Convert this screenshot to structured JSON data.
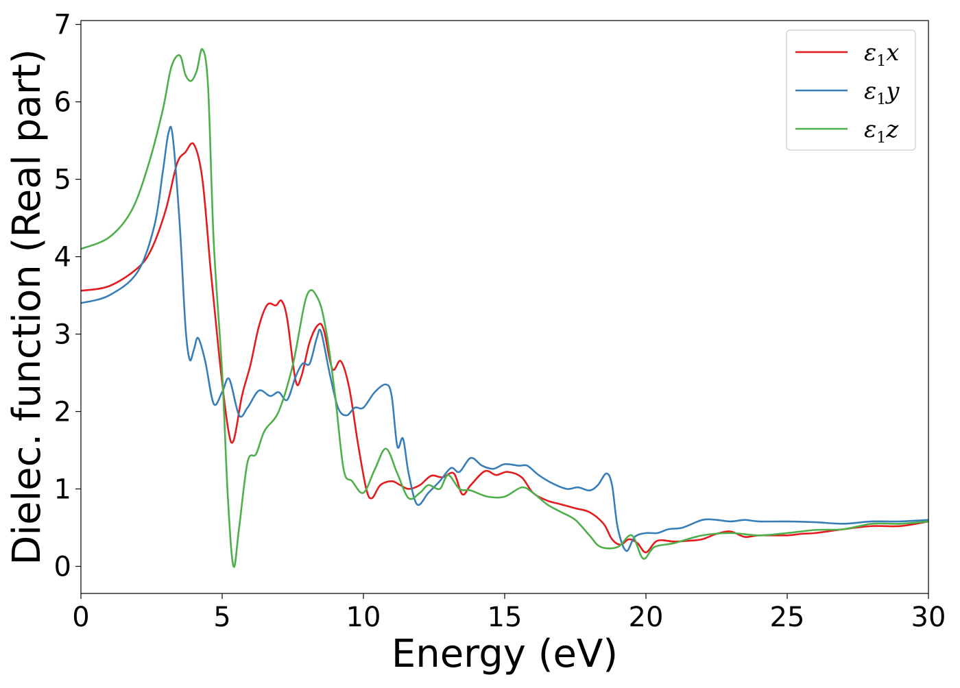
{
  "chart_data": {
    "type": "line",
    "xlabel": "Energy (eV)",
    "ylabel": "Dielec. function (Real part)",
    "xlim": [
      0,
      30
    ],
    "ylim": [
      -0.35,
      7.05
    ],
    "x_ticks": [
      0,
      5,
      10,
      15,
      20,
      25,
      30
    ],
    "y_ticks": [
      0,
      1,
      2,
      3,
      4,
      5,
      6,
      7
    ],
    "grid": false,
    "legend_position": "top-right",
    "series": [
      {
        "name": "ε₁x",
        "legend": {
          "symbol": "ε",
          "sub": "1",
          "var": "x"
        },
        "color": "#e41a1c",
        "points": [
          [
            0,
            3.56
          ],
          [
            1,
            3.62
          ],
          [
            2,
            3.85
          ],
          [
            2.5,
            4.1
          ],
          [
            3,
            4.6
          ],
          [
            3.4,
            5.2
          ],
          [
            3.7,
            5.35
          ],
          [
            4,
            5.45
          ],
          [
            4.3,
            5.0
          ],
          [
            4.6,
            3.8
          ],
          [
            4.9,
            2.7
          ],
          [
            5.2,
            1.8
          ],
          [
            5.4,
            1.62
          ],
          [
            5.7,
            2.2
          ],
          [
            6.0,
            2.6
          ],
          [
            6.3,
            3.1
          ],
          [
            6.6,
            3.38
          ],
          [
            6.9,
            3.37
          ],
          [
            7.1,
            3.43
          ],
          [
            7.3,
            3.2
          ],
          [
            7.6,
            2.4
          ],
          [
            7.8,
            2.45
          ],
          [
            8.1,
            2.9
          ],
          [
            8.4,
            3.12
          ],
          [
            8.6,
            3.05
          ],
          [
            8.9,
            2.55
          ],
          [
            9.2,
            2.65
          ],
          [
            9.5,
            2.3
          ],
          [
            9.8,
            1.6
          ],
          [
            10.1,
            1.0
          ],
          [
            10.3,
            0.88
          ],
          [
            10.6,
            1.05
          ],
          [
            11.0,
            1.1
          ],
          [
            11.3,
            1.05
          ],
          [
            11.6,
            1.0
          ],
          [
            12.0,
            1.05
          ],
          [
            12.4,
            1.17
          ],
          [
            12.8,
            1.15
          ],
          [
            13.2,
            1.2
          ],
          [
            13.5,
            0.93
          ],
          [
            13.8,
            1.05
          ],
          [
            14.3,
            1.23
          ],
          [
            14.7,
            1.18
          ],
          [
            15.1,
            1.22
          ],
          [
            15.6,
            1.15
          ],
          [
            16.0,
            0.95
          ],
          [
            16.5,
            0.85
          ],
          [
            17.0,
            0.8
          ],
          [
            17.5,
            0.75
          ],
          [
            18.0,
            0.7
          ],
          [
            18.5,
            0.55
          ],
          [
            18.8,
            0.35
          ],
          [
            19.1,
            0.28
          ],
          [
            19.4,
            0.35
          ],
          [
            19.7,
            0.3
          ],
          [
            20.0,
            0.18
          ],
          [
            20.4,
            0.33
          ],
          [
            21.0,
            0.32
          ],
          [
            21.5,
            0.33
          ],
          [
            22.0,
            0.35
          ],
          [
            22.5,
            0.42
          ],
          [
            23.0,
            0.45
          ],
          [
            23.5,
            0.38
          ],
          [
            24.0,
            0.4
          ],
          [
            25.0,
            0.4
          ],
          [
            25.5,
            0.42
          ],
          [
            26.0,
            0.43
          ],
          [
            27.0,
            0.48
          ],
          [
            28.0,
            0.52
          ],
          [
            29.0,
            0.52
          ],
          [
            30.0,
            0.58
          ]
        ]
      },
      {
        "name": "ε₁y",
        "legend": {
          "symbol": "ε",
          "sub": "1",
          "var": "y"
        },
        "color": "#377eb8",
        "points": [
          [
            0,
            3.4
          ],
          [
            1,
            3.5
          ],
          [
            2,
            3.8
          ],
          [
            2.6,
            4.4
          ],
          [
            2.9,
            5.1
          ],
          [
            3.1,
            5.6
          ],
          [
            3.25,
            5.55
          ],
          [
            3.5,
            4.4
          ],
          [
            3.7,
            3.1
          ],
          [
            3.85,
            2.67
          ],
          [
            4.0,
            2.8
          ],
          [
            4.15,
            2.95
          ],
          [
            4.4,
            2.65
          ],
          [
            4.7,
            2.1
          ],
          [
            5.0,
            2.25
          ],
          [
            5.25,
            2.42
          ],
          [
            5.6,
            1.95
          ],
          [
            5.9,
            2.05
          ],
          [
            6.3,
            2.27
          ],
          [
            6.7,
            2.2
          ],
          [
            7.0,
            2.25
          ],
          [
            7.3,
            2.15
          ],
          [
            7.6,
            2.45
          ],
          [
            7.85,
            2.62
          ],
          [
            8.1,
            2.62
          ],
          [
            8.35,
            2.95
          ],
          [
            8.5,
            3.03
          ],
          [
            8.8,
            2.5
          ],
          [
            9.1,
            2.05
          ],
          [
            9.4,
            1.95
          ],
          [
            9.7,
            2.05
          ],
          [
            10.0,
            2.05
          ],
          [
            10.4,
            2.25
          ],
          [
            10.8,
            2.35
          ],
          [
            11.0,
            2.2
          ],
          [
            11.2,
            1.55
          ],
          [
            11.4,
            1.65
          ],
          [
            11.6,
            1.2
          ],
          [
            11.9,
            0.8
          ],
          [
            12.3,
            0.95
          ],
          [
            12.7,
            1.1
          ],
          [
            13.1,
            1.27
          ],
          [
            13.4,
            1.22
          ],
          [
            13.8,
            1.4
          ],
          [
            14.2,
            1.3
          ],
          [
            14.6,
            1.26
          ],
          [
            15.0,
            1.32
          ],
          [
            15.5,
            1.3
          ],
          [
            15.8,
            1.3
          ],
          [
            16.2,
            1.18
          ],
          [
            16.7,
            1.07
          ],
          [
            17.2,
            1.0
          ],
          [
            17.6,
            1.02
          ],
          [
            18.0,
            0.98
          ],
          [
            18.3,
            1.05
          ],
          [
            18.6,
            1.2
          ],
          [
            18.8,
            1.05
          ],
          [
            19.0,
            0.5
          ],
          [
            19.3,
            0.2
          ],
          [
            19.6,
            0.38
          ],
          [
            20.0,
            0.43
          ],
          [
            20.4,
            0.43
          ],
          [
            20.8,
            0.48
          ],
          [
            21.3,
            0.5
          ],
          [
            22.0,
            0.6
          ],
          [
            22.5,
            0.6
          ],
          [
            23.0,
            0.58
          ],
          [
            23.5,
            0.6
          ],
          [
            24.0,
            0.58
          ],
          [
            25.0,
            0.58
          ],
          [
            26.0,
            0.57
          ],
          [
            27.0,
            0.55
          ],
          [
            28.0,
            0.58
          ],
          [
            29.0,
            0.58
          ],
          [
            30.0,
            0.6
          ]
        ]
      },
      {
        "name": "ε₁z",
        "legend": {
          "symbol": "ε",
          "sub": "1",
          "var": "z"
        },
        "color": "#4daf4a",
        "points": [
          [
            0,
            4.1
          ],
          [
            1,
            4.25
          ],
          [
            1.8,
            4.6
          ],
          [
            2.4,
            5.2
          ],
          [
            2.9,
            5.9
          ],
          [
            3.2,
            6.45
          ],
          [
            3.5,
            6.6
          ],
          [
            3.7,
            6.35
          ],
          [
            3.9,
            6.27
          ],
          [
            4.1,
            6.4
          ],
          [
            4.3,
            6.68
          ],
          [
            4.5,
            6.2
          ],
          [
            4.7,
            4.2
          ],
          [
            5.0,
            2.5
          ],
          [
            5.2,
            0.9
          ],
          [
            5.4,
            0.0
          ],
          [
            5.6,
            0.5
          ],
          [
            5.9,
            1.35
          ],
          [
            6.2,
            1.45
          ],
          [
            6.5,
            1.75
          ],
          [
            7.0,
            2.0
          ],
          [
            7.5,
            2.6
          ],
          [
            8.0,
            3.5
          ],
          [
            8.4,
            3.45
          ],
          [
            8.7,
            3.0
          ],
          [
            9.0,
            2.2
          ],
          [
            9.3,
            1.25
          ],
          [
            9.6,
            1.1
          ],
          [
            10.0,
            0.95
          ],
          [
            10.4,
            1.25
          ],
          [
            10.8,
            1.52
          ],
          [
            11.2,
            1.2
          ],
          [
            11.6,
            0.88
          ],
          [
            12.0,
            0.95
          ],
          [
            12.3,
            1.05
          ],
          [
            12.7,
            1.0
          ],
          [
            13.0,
            1.18
          ],
          [
            13.4,
            1.0
          ],
          [
            13.8,
            0.98
          ],
          [
            14.4,
            0.9
          ],
          [
            15.0,
            0.9
          ],
          [
            15.6,
            1.02
          ],
          [
            16.0,
            0.95
          ],
          [
            16.5,
            0.8
          ],
          [
            17.0,
            0.7
          ],
          [
            17.5,
            0.6
          ],
          [
            18.0,
            0.4
          ],
          [
            18.4,
            0.25
          ],
          [
            19.0,
            0.25
          ],
          [
            19.5,
            0.4
          ],
          [
            19.9,
            0.1
          ],
          [
            20.3,
            0.25
          ],
          [
            21.0,
            0.3
          ],
          [
            22.0,
            0.4
          ],
          [
            23.0,
            0.43
          ],
          [
            24.0,
            0.4
          ],
          [
            25.0,
            0.43
          ],
          [
            26.0,
            0.47
          ],
          [
            27.0,
            0.48
          ],
          [
            28.0,
            0.55
          ],
          [
            29.0,
            0.55
          ],
          [
            30.0,
            0.58
          ]
        ]
      }
    ]
  }
}
